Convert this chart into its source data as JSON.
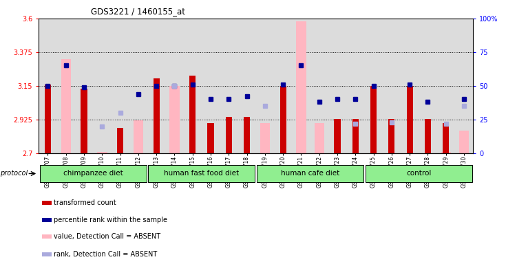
{
  "title": "GDS3221 / 1460155_at",
  "samples": [
    "GSM144707",
    "GSM144708",
    "GSM144709",
    "GSM144710",
    "GSM144711",
    "GSM144712",
    "GSM144713",
    "GSM144714",
    "GSM144715",
    "GSM144716",
    "GSM144717",
    "GSM144718",
    "GSM144719",
    "GSM144720",
    "GSM144721",
    "GSM144722",
    "GSM144723",
    "GSM144724",
    "GSM144725",
    "GSM144726",
    "GSM144727",
    "GSM144728",
    "GSM144729",
    "GSM144730"
  ],
  "red_values": [
    3.16,
    0.0,
    3.13,
    0.0,
    2.87,
    0.0,
    3.2,
    0.0,
    3.22,
    2.9,
    2.94,
    2.94,
    0.0,
    3.15,
    0.0,
    0.0,
    2.93,
    2.93,
    3.15,
    2.93,
    3.15,
    2.93,
    2.9,
    0.0
  ],
  "pink_values": [
    0.0,
    3.33,
    0.0,
    2.71,
    0.0,
    2.92,
    0.0,
    3.15,
    0.0,
    0.0,
    0.0,
    0.0,
    2.9,
    0.0,
    3.58,
    2.9,
    0.0,
    0.0,
    0.0,
    0.0,
    0.0,
    0.0,
    2.71,
    2.85
  ],
  "blue_values": [
    50,
    65,
    49,
    0,
    0,
    44,
    50,
    50,
    51,
    40,
    40,
    42,
    0,
    51,
    65,
    38,
    40,
    40,
    50,
    0,
    51,
    38,
    0,
    40
  ],
  "lightblue_values": [
    0,
    0,
    0,
    20,
    30,
    0,
    0,
    50,
    0,
    0,
    0,
    0,
    35,
    0,
    0,
    0,
    0,
    22,
    0,
    23,
    0,
    0,
    22,
    35
  ],
  "groups": [
    {
      "label": "chimpanzee diet",
      "start": 0,
      "end": 5
    },
    {
      "label": "human fast food diet",
      "start": 6,
      "end": 11
    },
    {
      "label": "human cafe diet",
      "start": 12,
      "end": 17
    },
    {
      "label": "control",
      "start": 18,
      "end": 23
    }
  ],
  "ylim_left": [
    2.7,
    3.6
  ],
  "ylim_right": [
    0,
    100
  ],
  "yticks_left": [
    2.7,
    2.925,
    3.15,
    3.375,
    3.6
  ],
  "yticks_right": [
    0,
    25,
    50,
    75,
    100
  ],
  "ytick_labels_left": [
    "2.7",
    "2.925",
    "3.15",
    "3.375",
    "3.6"
  ],
  "ytick_labels_right": [
    "0",
    "25",
    "50",
    "75",
    "100%"
  ],
  "hlines": [
    2.925,
    3.15,
    3.375
  ],
  "red_color": "#CC0000",
  "pink_color": "#FFB6C1",
  "blue_color": "#000099",
  "lightblue_color": "#AAAADD",
  "chart_bg": "#DCDCDC",
  "green_color": "#90EE90",
  "legend_items": [
    {
      "color": "#CC0000",
      "label": "transformed count"
    },
    {
      "color": "#000099",
      "label": "percentile rank within the sample"
    },
    {
      "color": "#FFB6C1",
      "label": "value, Detection Call = ABSENT"
    },
    {
      "color": "#AAAADD",
      "label": "rank, Detection Call = ABSENT"
    }
  ]
}
